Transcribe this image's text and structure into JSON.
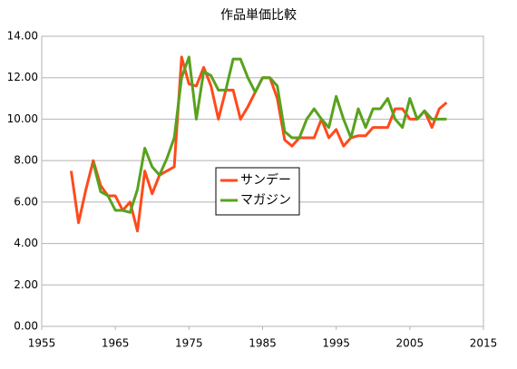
{
  "chart_data": {
    "type": "line",
    "title": "作品単価比較",
    "x": [
      1959,
      1960,
      1961,
      1962,
      1963,
      1964,
      1965,
      1966,
      1967,
      1968,
      1969,
      1970,
      1971,
      1972,
      1973,
      1974,
      1975,
      1976,
      1977,
      1978,
      1979,
      1980,
      1981,
      1982,
      1983,
      1984,
      1985,
      1986,
      1987,
      1988,
      1989,
      1990,
      1991,
      1992,
      1993,
      1994,
      1995,
      1996,
      1997,
      1998,
      1999,
      2000,
      2001,
      2002,
      2003,
      2004,
      2005,
      2006,
      2007,
      2008,
      2009,
      2010
    ],
    "series": [
      {
        "name": "サンデー",
        "color": "#ff4a1c",
        "values": [
          7.5,
          5.0,
          6.6,
          8.0,
          6.8,
          6.3,
          6.3,
          5.6,
          6.0,
          4.6,
          7.5,
          6.4,
          7.3,
          7.5,
          7.7,
          13.0,
          11.7,
          11.6,
          12.5,
          11.6,
          10.0,
          11.4,
          11.4,
          10.0,
          10.6,
          11.3,
          12.0,
          12.0,
          11.0,
          9.0,
          8.7,
          9.1,
          9.1,
          9.1,
          10.0,
          9.1,
          9.5,
          8.7,
          9.1,
          9.2,
          9.2,
          9.6,
          9.6,
          9.6,
          10.5,
          10.5,
          10.0,
          10.0,
          10.4,
          9.6,
          10.5,
          10.8
        ]
      },
      {
        "name": "マガジン",
        "color": "#58a21e",
        "values": [
          null,
          null,
          null,
          7.9,
          6.5,
          6.3,
          5.6,
          5.6,
          5.5,
          6.6,
          8.6,
          7.7,
          7.3,
          8.1,
          9.1,
          12.0,
          13.0,
          10.0,
          12.3,
          12.1,
          11.4,
          11.4,
          12.9,
          12.9,
          12.0,
          11.3,
          12.0,
          12.0,
          11.6,
          9.4,
          9.1,
          9.1,
          10.0,
          10.5,
          10.0,
          9.6,
          11.1,
          10.0,
          9.1,
          10.5,
          9.6,
          10.5,
          10.5,
          11.0,
          10.0,
          9.6,
          11.0,
          10.0,
          10.4,
          10.0,
          10.0,
          10.0
        ]
      }
    ],
    "xlim": [
      1955,
      2015
    ],
    "xticks": [
      1955,
      1965,
      1975,
      1985,
      1995,
      2005,
      2015
    ],
    "ylim": [
      0,
      14
    ],
    "yticks": [
      {
        "value": 0,
        "label": "0.00"
      },
      {
        "value": 2,
        "label": "2.00"
      },
      {
        "value": 4,
        "label": "4.00"
      },
      {
        "value": 6,
        "label": "6.00"
      },
      {
        "value": 8,
        "label": "8.00"
      },
      {
        "value": 10,
        "label": "10.00"
      },
      {
        "value": 12,
        "label": "12.00"
      },
      {
        "value": 14,
        "label": "14.00"
      }
    ],
    "grid": true
  }
}
